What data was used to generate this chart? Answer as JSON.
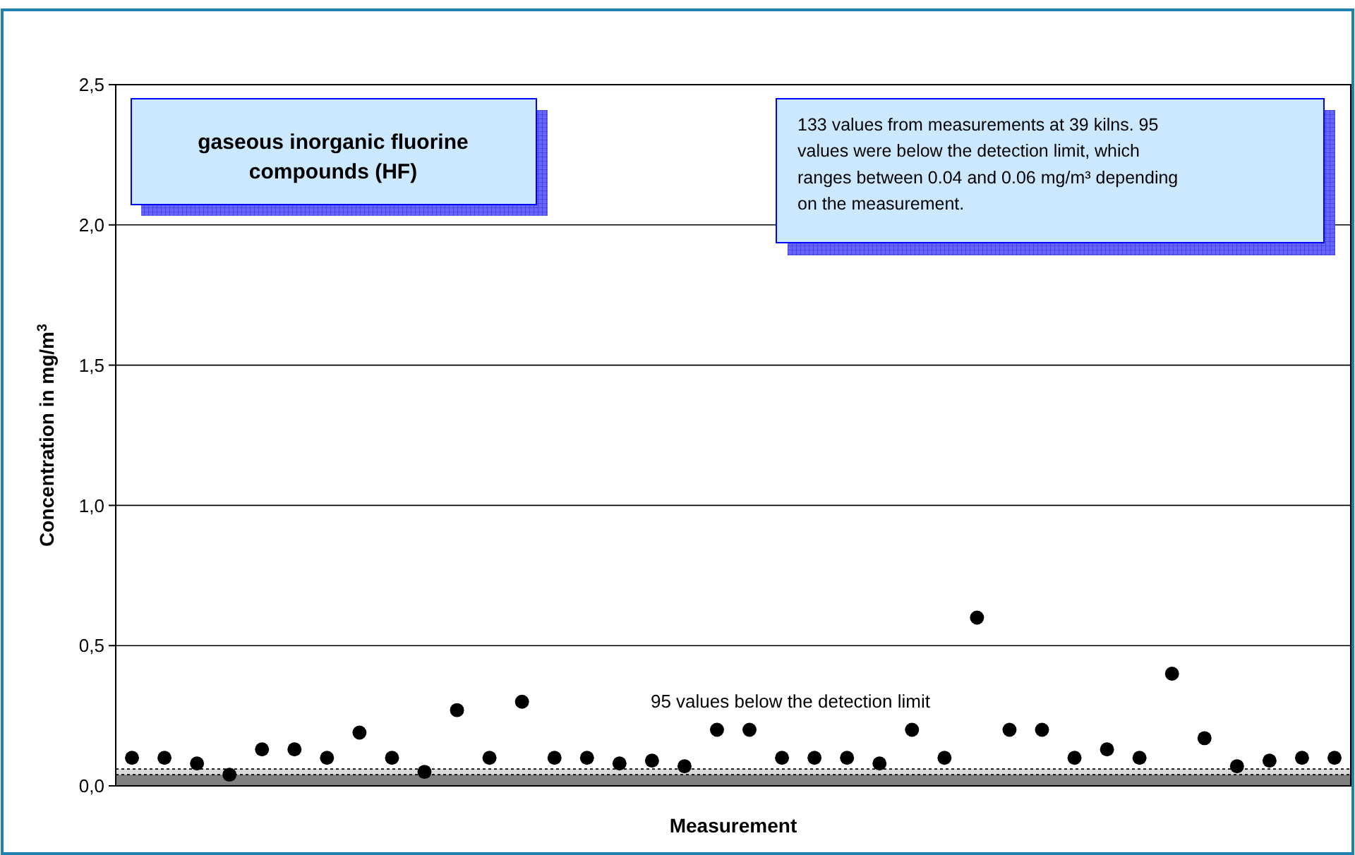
{
  "chart_data": {
    "type": "scatter",
    "title": "gaseous inorganic fluorine compounds (HF)",
    "xlabel": "Measurement",
    "ylabel": "Concentration in mg/m$^{3}$",
    "annotations": [
      "133 values from measurements at 39 kilns. 95 values were below the detection limit, which ranges between 0.04 and 0.06 mg/m³ depending on the measurement.",
      "95 values below the detection limit"
    ],
    "categories": [
      null,
      null,
      null,
      null,
      null,
      null,
      null,
      null,
      null,
      null,
      null,
      null,
      null,
      null,
      null,
      null,
      null,
      null,
      null,
      null,
      null,
      null,
      null,
      null,
      null,
      null,
      null,
      null,
      null,
      null,
      null,
      null,
      null,
      null,
      null,
      null,
      null,
      null
    ],
    "series": [
      {
        "color": "#000000",
        "values": [
          0.1,
          0.1,
          0.08,
          0.04,
          0.13,
          0.13,
          0.1,
          0.19,
          0.1,
          0.05,
          0.27,
          0.1,
          0.3,
          0.1,
          0.1,
          0.08,
          0.09,
          0.07,
          0.2,
          0.2,
          0.1,
          0.1,
          0.1,
          0.08,
          0.2,
          0.1,
          0.6,
          0.2,
          0.2,
          0.1,
          0.13,
          0.1,
          0.4,
          0.17,
          0.07,
          0.09,
          0.1,
          0.1
        ]
      }
    ],
    "ylim": [
      0,
      2.5
    ],
    "yticks": [
      {
        "value": 0,
        "label": "0,0"
      },
      {
        "value": 0.5,
        "label": "0,5"
      },
      {
        "value": 1,
        "label": "1,0"
      },
      {
        "value": 1.5,
        "label": "1,5"
      },
      {
        "value": 2,
        "label": "2,0"
      },
      {
        "value": 2.5,
        "label": "2,5"
      }
    ],
    "bands": [
      {
        "axis": "y",
        "from": 0,
        "to": 0.04,
        "color": "#808080"
      },
      {
        "axis": "y",
        "from": 0.04,
        "to": 0.06,
        "color": "#d9d9d9"
      }
    ],
    "ref_lines": [
      {
        "axis": "y",
        "value": 0.04,
        "line_style": "dotted",
        "color": "#000000"
      },
      {
        "axis": "y",
        "value": 0.06,
        "line_style": "dotted",
        "color": "#000000"
      }
    ],
    "grid": "y",
    "marker": "circle"
  }
}
